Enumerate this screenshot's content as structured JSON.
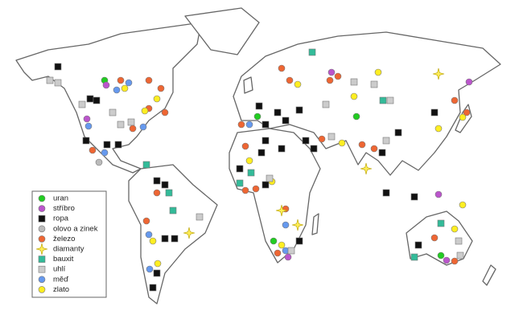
{
  "legend": {
    "items": [
      {
        "label": "uran"
      },
      {
        "label": "stříbro"
      },
      {
        "label": "ropa"
      },
      {
        "label": "olovo a zinek"
      },
      {
        "label": "železo"
      },
      {
        "label": "diamanty"
      },
      {
        "label": "bauxit"
      },
      {
        "label": "uhlí"
      },
      {
        "label": "měď"
      },
      {
        "label": "zlato"
      }
    ]
  }
}
